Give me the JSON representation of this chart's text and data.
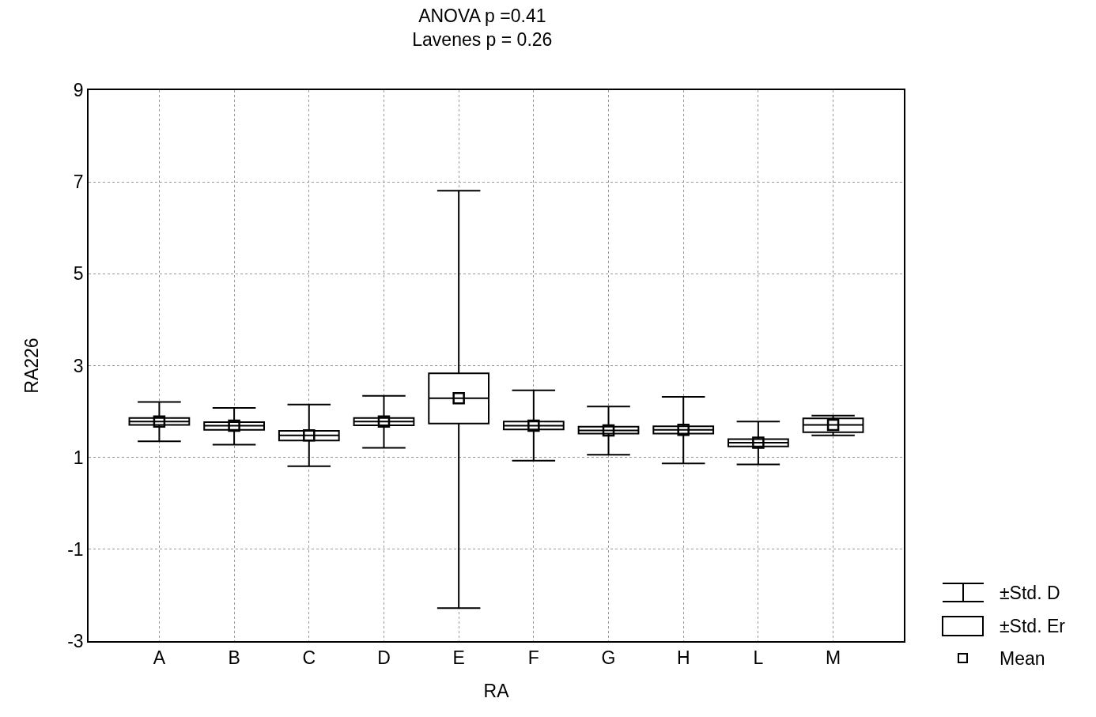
{
  "chart_data": {
    "type": "box",
    "title": "ANOVA p =0.41",
    "subtitle": "Lavenes p = 0.26",
    "xlabel": "RA",
    "ylabel": "RA226",
    "categories": [
      "A",
      "B",
      "C",
      "D",
      "E",
      "F",
      "G",
      "H",
      "L",
      "M"
    ],
    "boxes": [
      {
        "low": 1.35,
        "q1": 1.71,
        "median": 1.78,
        "q3": 1.86,
        "high": 2.21,
        "mean": 1.78
      },
      {
        "low": 1.28,
        "q1": 1.6,
        "median": 1.69,
        "q3": 1.77,
        "high": 2.08,
        "mean": 1.69
      },
      {
        "low": 0.81,
        "q1": 1.37,
        "median": 1.48,
        "q3": 1.58,
        "high": 2.15,
        "mean": 1.48
      },
      {
        "low": 1.21,
        "q1": 1.7,
        "median": 1.78,
        "q3": 1.86,
        "high": 2.34,
        "mean": 1.78
      },
      {
        "low": -2.28,
        "q1": 1.74,
        "median": 2.29,
        "q3": 2.83,
        "high": 6.81,
        "mean": 2.29
      },
      {
        "low": 0.93,
        "q1": 1.61,
        "median": 1.69,
        "q3": 1.78,
        "high": 2.46,
        "mean": 1.69
      },
      {
        "low": 1.06,
        "q1": 1.52,
        "median": 1.59,
        "q3": 1.67,
        "high": 2.11,
        "mean": 1.59
      },
      {
        "low": 0.87,
        "q1": 1.52,
        "median": 1.6,
        "q3": 1.68,
        "high": 2.32,
        "mean": 1.6
      },
      {
        "low": 0.85,
        "q1": 1.24,
        "median": 1.32,
        "q3": 1.4,
        "high": 1.78,
        "mean": 1.32
      },
      {
        "low": 1.48,
        "q1": 1.55,
        "median": 1.71,
        "q3": 1.85,
        "high": 1.91,
        "mean": 1.71
      }
    ],
    "color": "#000000",
    "marker": "square",
    "ylim": [
      -3,
      9
    ],
    "yticks": [
      -3,
      -1,
      1,
      3,
      5,
      7,
      9
    ],
    "grid": true,
    "annotations": [
      "±Std. D",
      "±Std. Er",
      "Mean"
    ]
  }
}
